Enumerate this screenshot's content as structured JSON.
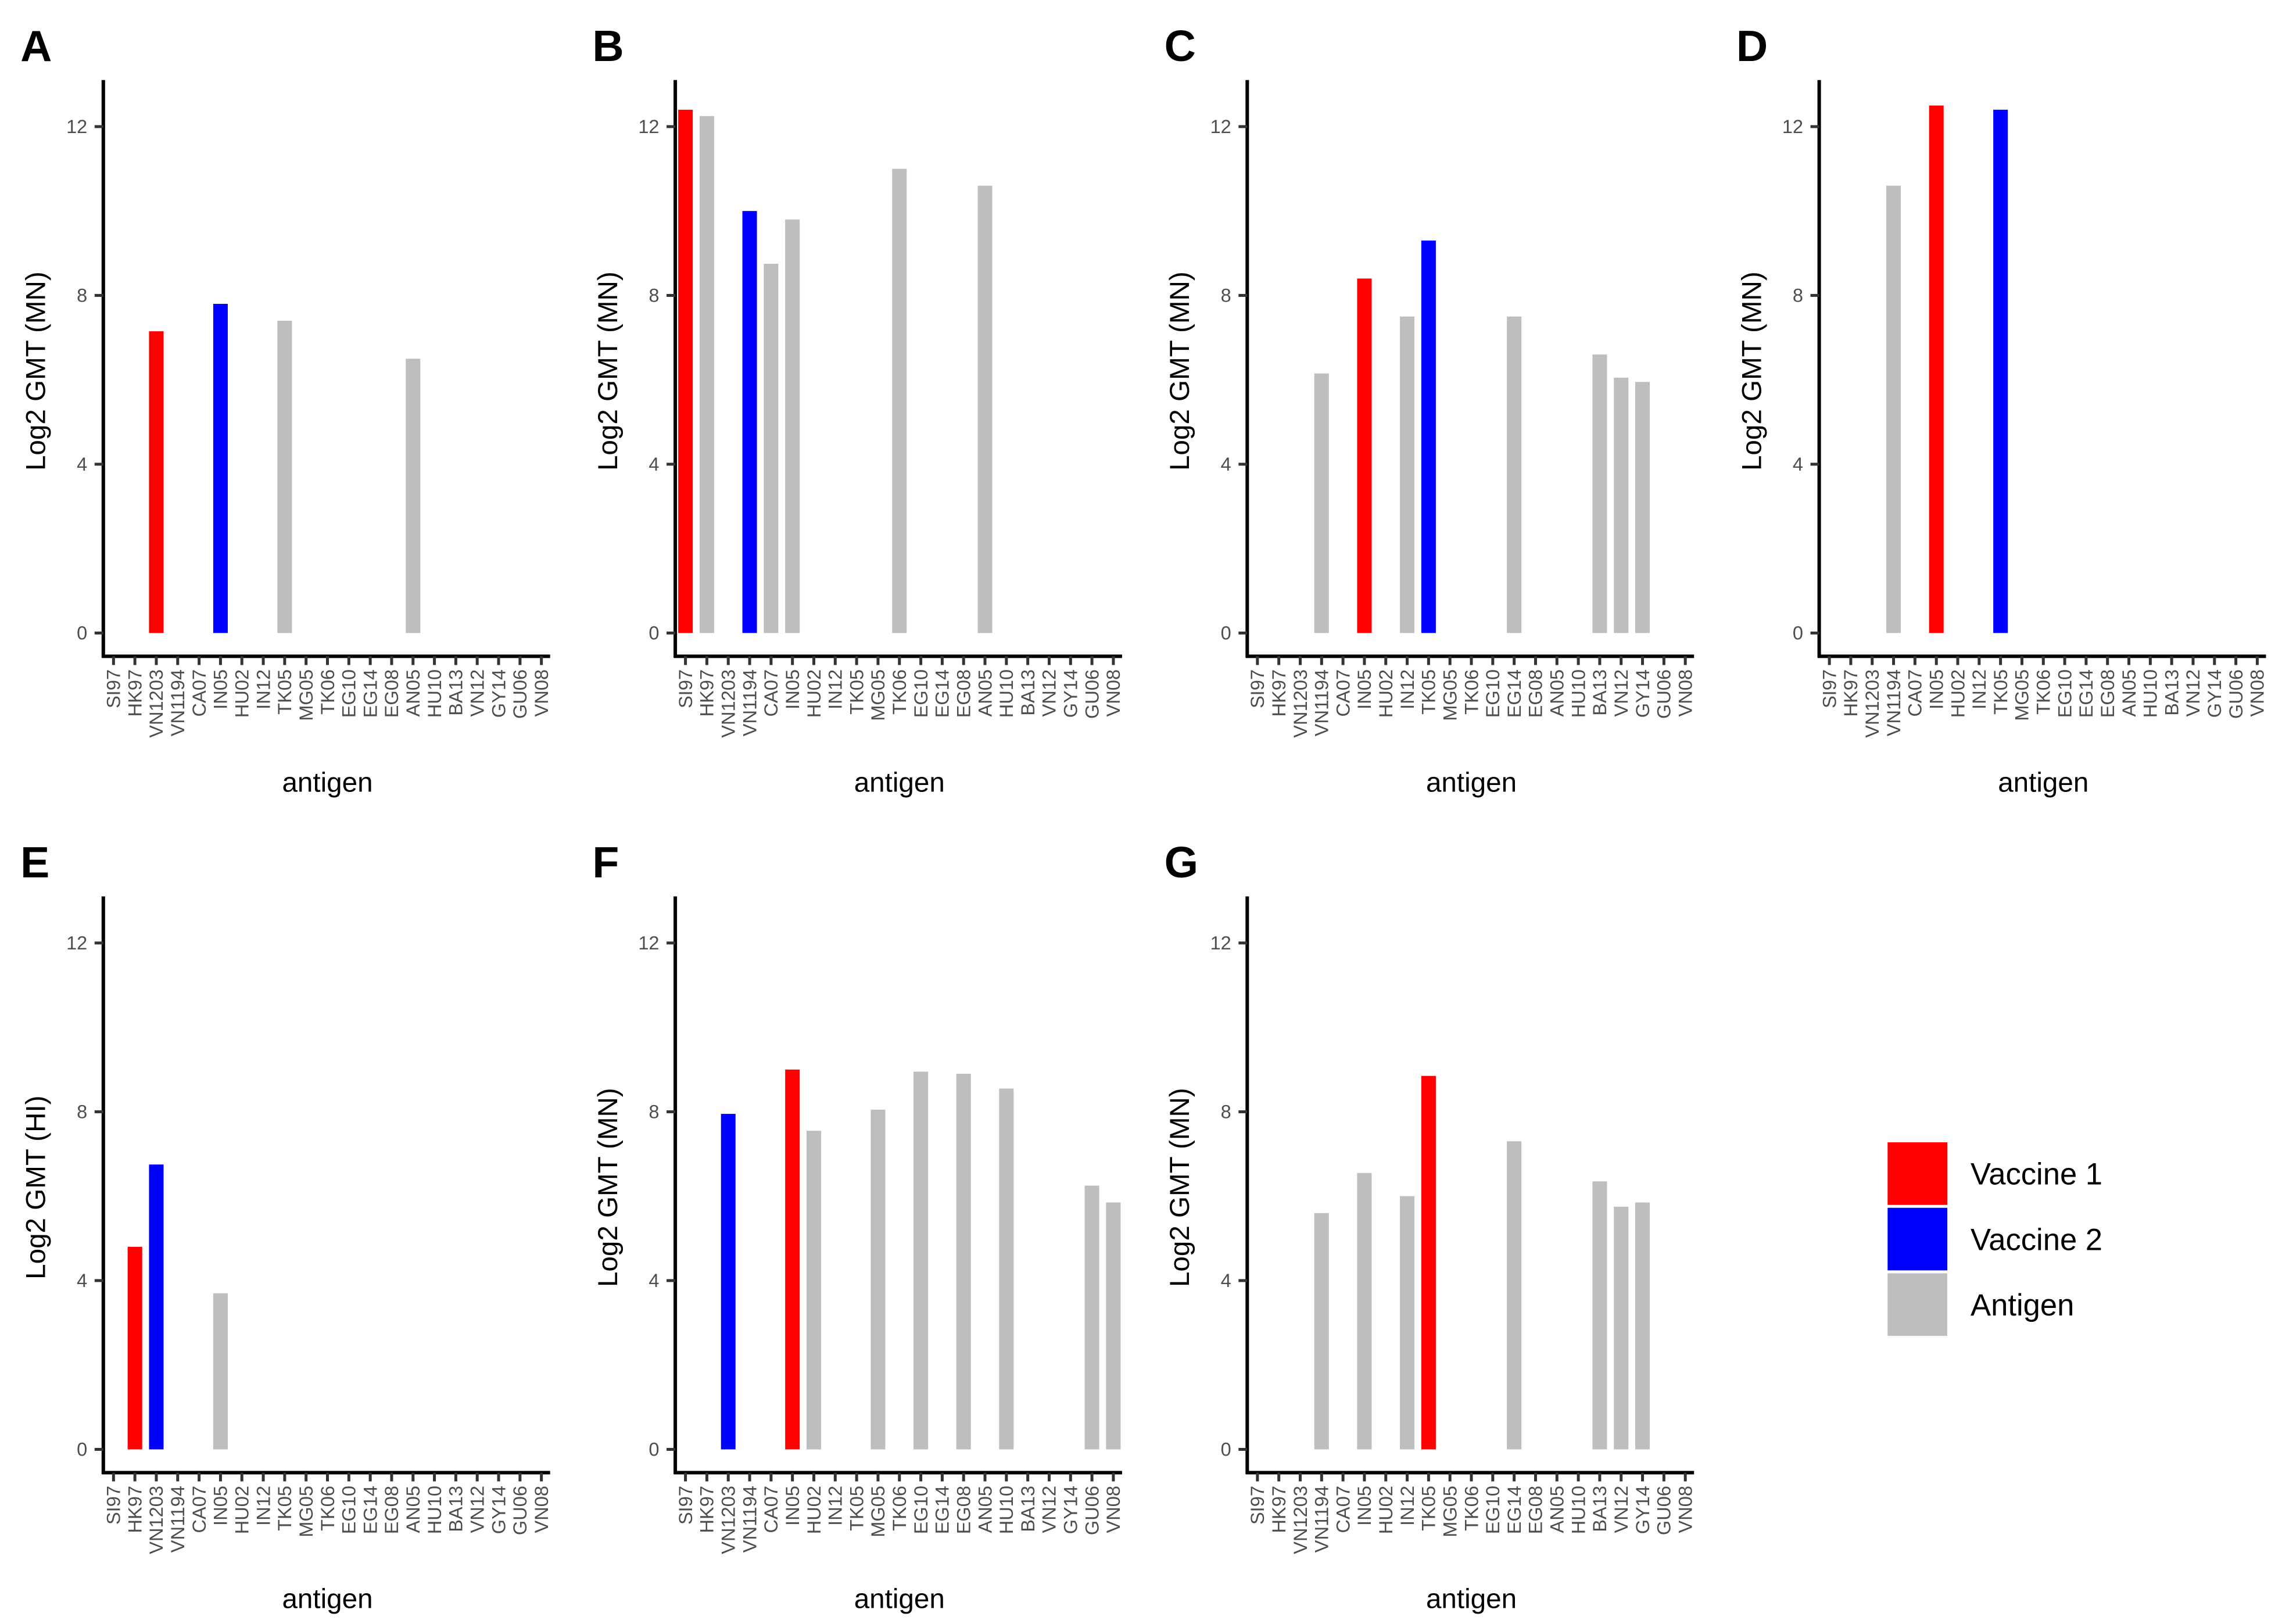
{
  "chart_data": {
    "type": "bar",
    "categories": [
      "SI97",
      "HK97",
      "VN1203",
      "VN1194",
      "CA07",
      "IN05",
      "HU02",
      "IN12",
      "TK05",
      "MG05",
      "TK06",
      "EG10",
      "EG14",
      "EG08",
      "AN05",
      "HU10",
      "BA13",
      "VN12",
      "GY14",
      "GU06",
      "VN08"
    ],
    "xlabel": "antigen",
    "ylim": [
      -0.5,
      13
    ],
    "yticks": [
      0,
      4,
      8,
      12
    ],
    "grid": false,
    "legend": {
      "placement": "bottom-right",
      "entries": [
        {
          "label": "Vaccine 1",
          "color": "#ff0000"
        },
        {
          "label": "Vaccine 2",
          "color": "#0000ff"
        },
        {
          "label": "Antigen",
          "color": "#bebebe"
        }
      ]
    },
    "panels": [
      {
        "label": "A",
        "ylabel": "Log2 GMT (MN)",
        "bars": [
          {
            "antigen": "VN1203",
            "value": 7.15,
            "group": "Vaccine 1"
          },
          {
            "antigen": "IN05",
            "value": 7.8,
            "group": "Vaccine 2"
          },
          {
            "antigen": "TK05",
            "value": 7.4,
            "group": "Antigen"
          },
          {
            "antigen": "AN05",
            "value": 6.5,
            "group": "Antigen"
          }
        ]
      },
      {
        "label": "B",
        "ylabel": "Log2 GMT (MN)",
        "bars": [
          {
            "antigen": "SI97",
            "value": 12.4,
            "group": "Vaccine 1"
          },
          {
            "antigen": "HK97",
            "value": 12.25,
            "group": "Antigen"
          },
          {
            "antigen": "VN1194",
            "value": 10.0,
            "group": "Vaccine 2"
          },
          {
            "antigen": "CA07",
            "value": 8.75,
            "group": "Antigen"
          },
          {
            "antigen": "IN05",
            "value": 9.8,
            "group": "Antigen"
          },
          {
            "antigen": "TK06",
            "value": 11.0,
            "group": "Antigen"
          },
          {
            "antigen": "AN05",
            "value": 10.6,
            "group": "Antigen"
          }
        ]
      },
      {
        "label": "C",
        "ylabel": "Log2 GMT (MN)",
        "bars": [
          {
            "antigen": "VN1194",
            "value": 6.15,
            "group": "Antigen"
          },
          {
            "antigen": "IN05",
            "value": 8.4,
            "group": "Vaccine 1"
          },
          {
            "antigen": "IN12",
            "value": 7.5,
            "group": "Antigen"
          },
          {
            "antigen": "TK05",
            "value": 9.3,
            "group": "Vaccine 2"
          },
          {
            "antigen": "EG14",
            "value": 7.5,
            "group": "Antigen"
          },
          {
            "antigen": "BA13",
            "value": 6.6,
            "group": "Antigen"
          },
          {
            "antigen": "VN12",
            "value": 6.05,
            "group": "Antigen"
          },
          {
            "antigen": "GY14",
            "value": 5.95,
            "group": "Antigen"
          }
        ]
      },
      {
        "label": "D",
        "ylabel": "Log2 GMT (MN)",
        "bars": [
          {
            "antigen": "VN1194",
            "value": 10.6,
            "group": "Antigen"
          },
          {
            "antigen": "IN05",
            "value": 12.5,
            "group": "Vaccine 1"
          },
          {
            "antigen": "TK05",
            "value": 12.4,
            "group": "Vaccine 2"
          }
        ]
      },
      {
        "label": "E",
        "ylabel": "Log2 GMT (HI)",
        "bars": [
          {
            "antigen": "HK97",
            "value": 4.8,
            "group": "Vaccine 1"
          },
          {
            "antigen": "VN1203",
            "value": 6.75,
            "group": "Vaccine 2"
          },
          {
            "antigen": "IN05",
            "value": 3.7,
            "group": "Antigen"
          }
        ]
      },
      {
        "label": "F",
        "ylabel": "Log2 GMT (MN)",
        "bars": [
          {
            "antigen": "VN1203",
            "value": 7.95,
            "group": "Vaccine 2"
          },
          {
            "antigen": "IN05",
            "value": 9.0,
            "group": "Vaccine 1"
          },
          {
            "antigen": "HU02",
            "value": 7.55,
            "group": "Antigen"
          },
          {
            "antigen": "MG05",
            "value": 8.05,
            "group": "Antigen"
          },
          {
            "antigen": "EG10",
            "value": 8.95,
            "group": "Antigen"
          },
          {
            "antigen": "EG08",
            "value": 8.9,
            "group": "Antigen"
          },
          {
            "antigen": "HU10",
            "value": 8.55,
            "group": "Antigen"
          },
          {
            "antigen": "GU06",
            "value": 6.25,
            "group": "Antigen"
          },
          {
            "antigen": "VN08",
            "value": 5.85,
            "group": "Antigen"
          }
        ]
      },
      {
        "label": "G",
        "ylabel": "Log2 GMT (MN)",
        "bars": [
          {
            "antigen": "VN1194",
            "value": 5.6,
            "group": "Antigen"
          },
          {
            "antigen": "IN05",
            "value": 6.55,
            "group": "Antigen"
          },
          {
            "antigen": "IN12",
            "value": 6.0,
            "group": "Antigen"
          },
          {
            "antigen": "TK05",
            "value": 8.85,
            "group": "Vaccine 1"
          },
          {
            "antigen": "EG14",
            "value": 7.3,
            "group": "Antigen"
          },
          {
            "antigen": "BA13",
            "value": 6.35,
            "group": "Antigen"
          },
          {
            "antigen": "VN12",
            "value": 5.75,
            "group": "Antigen"
          },
          {
            "antigen": "GY14",
            "value": 5.85,
            "group": "Antigen"
          }
        ]
      }
    ]
  }
}
